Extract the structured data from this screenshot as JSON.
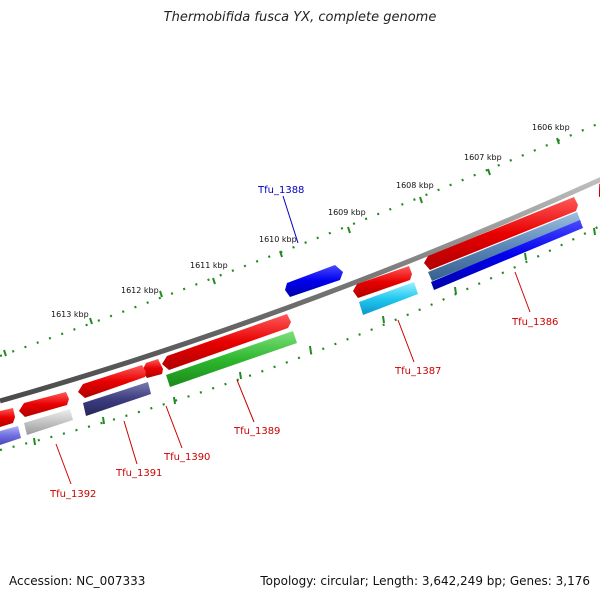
{
  "title": "Thermobifida fusca YX, complete genome",
  "footer": {
    "accession": "Accession: NC_007333",
    "summary": "Topology: circular; Length: 3,642,249 bp; Genes: 3,176"
  },
  "ruler": {
    "labels": [
      "1606 kbp",
      "1607 kbp",
      "1608 kbp",
      "1609 kbp",
      "1610 kbp",
      "1611 kbp",
      "1612 kbp",
      "1613 kbp"
    ]
  },
  "genes": [
    {
      "label": "Tfu_1386",
      "color": "#cc0000"
    },
    {
      "label": "Tfu_1387",
      "color": "#cc0000"
    },
    {
      "label": "Tfu_1388",
      "color": "#0000bb"
    },
    {
      "label": "Tfu_1389",
      "color": "#cc0000"
    },
    {
      "label": "Tfu_1390",
      "color": "#cc0000"
    },
    {
      "label": "Tfu_1391",
      "color": "#cc0000"
    },
    {
      "label": "Tfu_1392",
      "color": "#cc0000"
    }
  ]
}
